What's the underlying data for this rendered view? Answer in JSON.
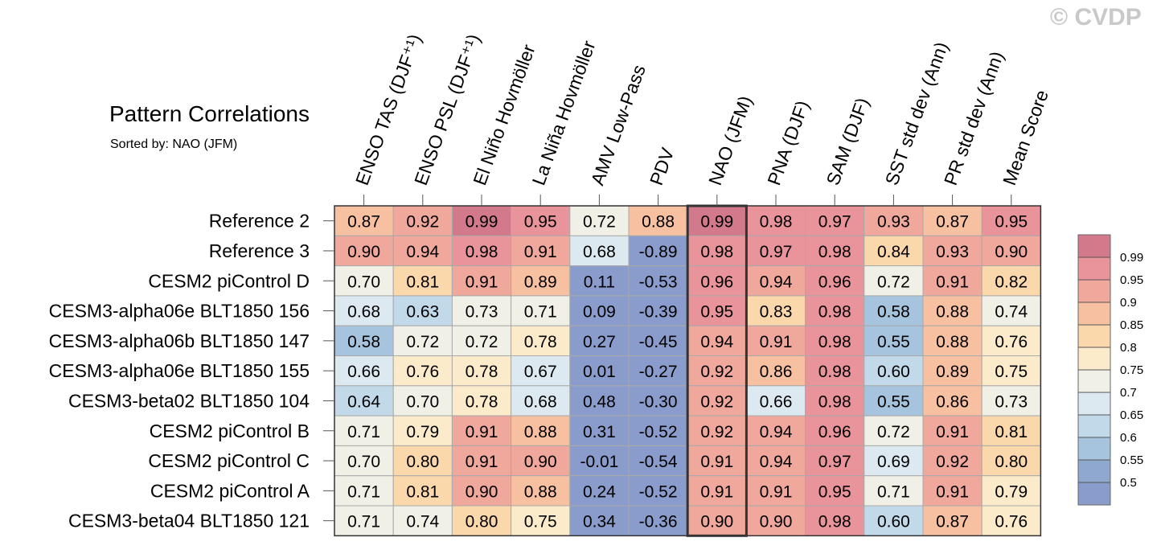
{
  "header": {
    "title": "Pattern Correlations",
    "subtitle": "Sorted by: NAO (JFM)",
    "watermark": "© CVDP"
  },
  "chart_data": {
    "type": "heatmap",
    "title": "Pattern Correlations",
    "subtitle": "Sorted by: NAO (JFM)",
    "highlighted_column": "NAO (JFM)",
    "columns": [
      "ENSO TAS (DJF⁺¹)",
      "ENSO PSL (DJF⁺¹)",
      "El Niño Hovmöller",
      "La Niña Hovmöller",
      "AMV Low-Pass",
      "PDV",
      "NAO (JFM)",
      "PNA (DJF)",
      "SAM (DJF)",
      "SST std dev (Ann)",
      "PR std dev (Ann)",
      "Mean Score"
    ],
    "rows": [
      {
        "name": "Reference 2",
        "values": [
          "0.87",
          "0.92",
          "0.99",
          "0.95",
          "0.72",
          "0.88",
          "0.99",
          "0.98",
          "0.97",
          "0.93",
          "0.87",
          "0.95"
        ]
      },
      {
        "name": "Reference 3",
        "values": [
          "0.90",
          "0.94",
          "0.98",
          "0.91",
          "0.68",
          "-0.89",
          "0.98",
          "0.97",
          "0.98",
          "0.84",
          "0.93",
          "0.90"
        ]
      },
      {
        "name": "CESM2 piControl D",
        "values": [
          "0.70",
          "0.81",
          "0.91",
          "0.89",
          "0.11",
          "-0.53",
          "0.96",
          "0.94",
          "0.96",
          "0.72",
          "0.91",
          "0.82"
        ]
      },
      {
        "name": "CESM3-alpha06e BLT1850 156",
        "values": [
          "0.68",
          "0.63",
          "0.73",
          "0.71",
          "0.09",
          "-0.39",
          "0.95",
          "0.83",
          "0.98",
          "0.58",
          "0.88",
          "0.74"
        ]
      },
      {
        "name": "CESM3-alpha06b BLT1850 147",
        "values": [
          "0.58",
          "0.72",
          "0.72",
          "0.78",
          "0.27",
          "-0.45",
          "0.94",
          "0.91",
          "0.98",
          "0.55",
          "0.88",
          "0.76"
        ]
      },
      {
        "name": "CESM3-alpha06e BLT1850 155",
        "values": [
          "0.66",
          "0.76",
          "0.78",
          "0.67",
          "0.01",
          "-0.27",
          "0.92",
          "0.86",
          "0.98",
          "0.60",
          "0.89",
          "0.75"
        ]
      },
      {
        "name": "CESM3-beta02 BLT1850 104",
        "values": [
          "0.64",
          "0.70",
          "0.78",
          "0.68",
          "0.48",
          "-0.30",
          "0.92",
          "0.66",
          "0.98",
          "0.55",
          "0.86",
          "0.73"
        ]
      },
      {
        "name": "CESM2 piControl B",
        "values": [
          "0.71",
          "0.79",
          "0.91",
          "0.88",
          "0.31",
          "-0.52",
          "0.92",
          "0.94",
          "0.96",
          "0.72",
          "0.91",
          "0.81"
        ]
      },
      {
        "name": "CESM2 piControl C",
        "values": [
          "0.70",
          "0.80",
          "0.91",
          "0.90",
          "-0.01",
          "-0.54",
          "0.91",
          "0.94",
          "0.97",
          "0.69",
          "0.92",
          "0.80"
        ]
      },
      {
        "name": "CESM2 piControl A",
        "values": [
          "0.71",
          "0.81",
          "0.90",
          "0.88",
          "0.24",
          "-0.52",
          "0.91",
          "0.91",
          "0.95",
          "0.71",
          "0.91",
          "0.79"
        ]
      },
      {
        "name": "CESM3-beta04 BLT1850 121",
        "values": [
          "0.71",
          "0.74",
          "0.80",
          "0.75",
          "0.34",
          "-0.36",
          "0.90",
          "0.90",
          "0.98",
          "0.60",
          "0.87",
          "0.76"
        ]
      }
    ],
    "colorbar": {
      "tick_labels": [
        "0.99",
        "0.95",
        "0.9",
        "0.85",
        "0.8",
        "0.75",
        "0.7",
        "0.65",
        "0.6",
        "0.55",
        "0.5"
      ],
      "colors_top_to_bottom": [
        "#d27a8c",
        "#e9949a",
        "#f0a79c",
        "#f7c1a1",
        "#fbd7ac",
        "#fcebca",
        "#f0f0e6",
        "#dde9f0",
        "#c2d9ea",
        "#a7c4de",
        "#8fa8cf",
        "#8a9ccb"
      ]
    }
  }
}
